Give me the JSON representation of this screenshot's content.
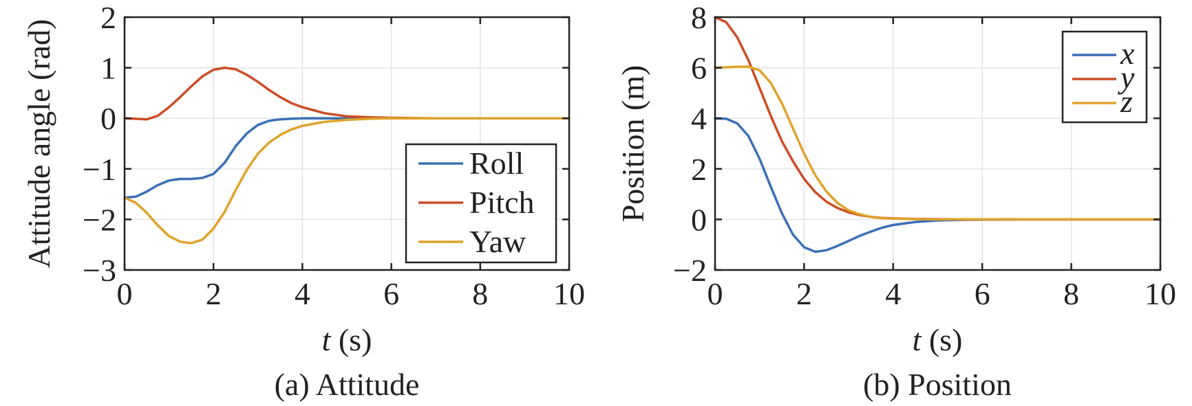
{
  "chart_data": [
    {
      "type": "line",
      "title": "(a) Attitude",
      "xlabel": "t (s)",
      "ylabel": "Attitude angle (rad)",
      "xlim": [
        0,
        10
      ],
      "ylim": [
        -3,
        2
      ],
      "xticks": [
        0,
        2,
        4,
        6,
        8,
        10
      ],
      "yticks": [
        -3,
        -2,
        -1,
        0,
        1,
        2
      ],
      "xtick_labels": [
        "0",
        "2",
        "4",
        "6",
        "8",
        "10"
      ],
      "ytick_labels": [
        "−3",
        "−2",
        "−1",
        "0",
        "1",
        "2"
      ],
      "grid": true,
      "legend_position": "lower-right",
      "series": [
        {
          "name": "Roll",
          "color": "#3a6fb5",
          "x": [
            0,
            0.25,
            0.5,
            0.75,
            1.0,
            1.25,
            1.5,
            1.75,
            2.0,
            2.25,
            2.5,
            2.75,
            3.0,
            3.25,
            3.5,
            3.75,
            4.0,
            4.5,
            5.0,
            5.5,
            6.0,
            7.0,
            8.0,
            9.0,
            10.0
          ],
          "y": [
            -1.57,
            -1.55,
            -1.45,
            -1.32,
            -1.23,
            -1.2,
            -1.2,
            -1.18,
            -1.1,
            -0.88,
            -0.55,
            -0.3,
            -0.13,
            -0.05,
            -0.02,
            -0.01,
            0.0,
            0.0,
            0.0,
            0.0,
            0.0,
            0.0,
            0.0,
            0.0,
            0.0
          ]
        },
        {
          "name": "Pitch",
          "color": "#cc4c24",
          "x": [
            0,
            0.25,
            0.5,
            0.75,
            1.0,
            1.25,
            1.5,
            1.75,
            2.0,
            2.25,
            2.5,
            2.75,
            3.0,
            3.25,
            3.5,
            3.75,
            4.0,
            4.5,
            5.0,
            5.5,
            6.0,
            7.0,
            8.0,
            9.0,
            10.0
          ],
          "y": [
            0.0,
            -0.01,
            -0.02,
            0.05,
            0.22,
            0.42,
            0.63,
            0.83,
            0.96,
            1.0,
            0.97,
            0.86,
            0.72,
            0.56,
            0.42,
            0.3,
            0.22,
            0.1,
            0.04,
            0.02,
            0.01,
            0.0,
            0.0,
            0.0,
            0.0
          ]
        },
        {
          "name": "Yaw",
          "color": "#e0a22a",
          "x": [
            0,
            0.25,
            0.5,
            0.75,
            1.0,
            1.25,
            1.5,
            1.75,
            2.0,
            2.25,
            2.5,
            2.75,
            3.0,
            3.25,
            3.5,
            3.75,
            4.0,
            4.5,
            5.0,
            5.5,
            6.0,
            7.0,
            8.0,
            9.0,
            10.0
          ],
          "y": [
            -1.57,
            -1.67,
            -1.87,
            -2.12,
            -2.33,
            -2.44,
            -2.47,
            -2.4,
            -2.18,
            -1.85,
            -1.42,
            -1.02,
            -0.7,
            -0.48,
            -0.33,
            -0.22,
            -0.15,
            -0.07,
            -0.03,
            -0.01,
            0.0,
            0.0,
            0.0,
            0.0,
            0.0
          ]
        }
      ]
    },
    {
      "type": "line",
      "title": "(b) Position",
      "xlabel": "t (s)",
      "ylabel": "Position (m)",
      "xlim": [
        0,
        10
      ],
      "ylim": [
        -2,
        8
      ],
      "xticks": [
        0,
        2,
        4,
        6,
        8,
        10
      ],
      "yticks": [
        -2,
        0,
        2,
        4,
        6,
        8
      ],
      "xtick_labels": [
        "0",
        "2",
        "4",
        "6",
        "8",
        "10"
      ],
      "ytick_labels": [
        "−2",
        "0",
        "2",
        "4",
        "6",
        "8"
      ],
      "grid": true,
      "legend_position": "top-right",
      "series": [
        {
          "name": "x",
          "color": "#3a6fb5",
          "x": [
            0,
            0.25,
            0.5,
            0.75,
            1.0,
            1.25,
            1.5,
            1.75,
            2.0,
            2.25,
            2.5,
            2.75,
            3.0,
            3.25,
            3.5,
            3.75,
            4.0,
            4.5,
            5.0,
            5.5,
            6.0,
            7.0,
            8.0,
            9.0,
            10.0
          ],
          "y": [
            4.0,
            3.98,
            3.8,
            3.3,
            2.4,
            1.3,
            0.25,
            -0.6,
            -1.1,
            -1.28,
            -1.22,
            -1.05,
            -0.85,
            -0.65,
            -0.48,
            -0.33,
            -0.22,
            -0.1,
            -0.04,
            -0.02,
            -0.01,
            0.0,
            0.0,
            0.0,
            0.0
          ]
        },
        {
          "name": "y",
          "color": "#cc4c24",
          "x": [
            0,
            0.25,
            0.5,
            0.75,
            1.0,
            1.25,
            1.5,
            1.75,
            2.0,
            2.25,
            2.5,
            2.75,
            3.0,
            3.25,
            3.5,
            3.75,
            4.0,
            4.5,
            5.0,
            5.5,
            6.0,
            7.0,
            8.0,
            9.0,
            10.0
          ],
          "y": [
            8.0,
            7.8,
            7.2,
            6.3,
            5.2,
            4.1,
            3.1,
            2.3,
            1.6,
            1.08,
            0.7,
            0.45,
            0.28,
            0.17,
            0.1,
            0.06,
            0.04,
            0.02,
            0.01,
            0.0,
            0.0,
            0.0,
            0.0,
            0.0,
            0.0
          ]
        },
        {
          "name": "z",
          "color": "#e0a22a",
          "x": [
            0,
            0.25,
            0.5,
            0.75,
            1.0,
            1.25,
            1.5,
            1.75,
            2.0,
            2.25,
            2.5,
            2.75,
            3.0,
            3.25,
            3.5,
            3.75,
            4.0,
            4.5,
            5.0,
            5.5,
            6.0,
            7.0,
            8.0,
            9.0,
            10.0
          ],
          "y": [
            6.0,
            6.02,
            6.04,
            6.04,
            5.9,
            5.4,
            4.6,
            3.6,
            2.6,
            1.75,
            1.1,
            0.65,
            0.36,
            0.2,
            0.1,
            0.05,
            0.03,
            0.01,
            0.0,
            0.0,
            0.0,
            0.0,
            0.0,
            0.0,
            0.0
          ]
        }
      ]
    }
  ]
}
